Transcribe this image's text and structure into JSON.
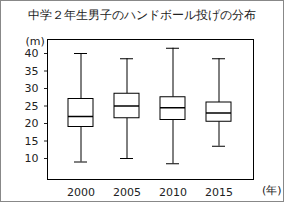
{
  "chart_data": {
    "type": "box",
    "title": "中学２年生男子のハンドボール投げの分布",
    "y_label": "(m)",
    "x_label": "(年)",
    "categories": [
      "2000",
      "2005",
      "2010",
      "2015"
    ],
    "boxes": [
      {
        "min": 9,
        "q1": 19,
        "median": 22,
        "q3": 27,
        "max": 40
      },
      {
        "min": 10,
        "q1": 21.5,
        "median": 25,
        "q3": 28.5,
        "max": 38.5
      },
      {
        "min": 8.5,
        "q1": 21,
        "median": 24.5,
        "q3": 27.5,
        "max": 41.5
      },
      {
        "min": 13.5,
        "q1": 20.5,
        "median": 23,
        "q3": 26,
        "max": 38.5
      }
    ],
    "color": "#000000",
    "ylim": [
      4,
      44
    ],
    "yticks": [
      10,
      15,
      20,
      25,
      30,
      35,
      40
    ],
    "grid": false
  }
}
